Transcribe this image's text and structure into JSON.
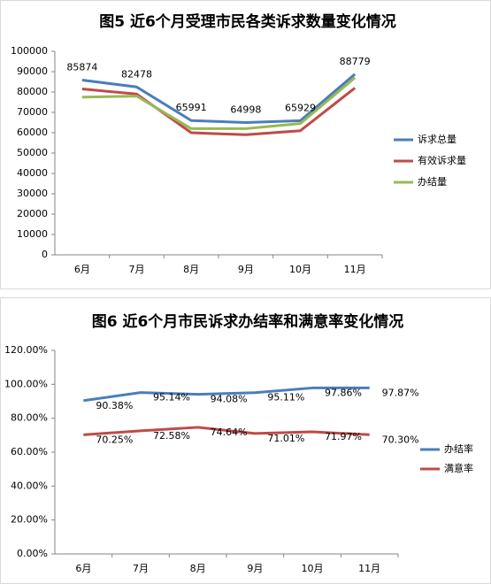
{
  "chart_data": [
    {
      "type": "line",
      "title": "图5  近6个月受理市民各类诉求数量变化情况",
      "categories": [
        "6月",
        "7月",
        "8月",
        "9月",
        "10月",
        "11月"
      ],
      "series": [
        {
          "name": "诉求总量",
          "color": "#4a7ebb",
          "values": [
            85874,
            82478,
            65991,
            64998,
            65929,
            88779
          ],
          "data_labels": true
        },
        {
          "name": "有效诉求量",
          "color": "#be4b48",
          "values": [
            81500,
            79000,
            60000,
            59000,
            61000,
            82000
          ],
          "data_labels": false
        },
        {
          "name": "办结量",
          "color": "#98b954",
          "values": [
            77500,
            78000,
            62000,
            62000,
            64500,
            87000
          ],
          "data_labels": false
        }
      ],
      "ylim": [
        0,
        100000
      ],
      "yticks": [
        0,
        10000,
        20000,
        30000,
        40000,
        50000,
        60000,
        70000,
        80000,
        90000,
        100000
      ],
      "legend": "right"
    },
    {
      "type": "line",
      "title": "图6  近6个月市民诉求办结率和满意率变化情况",
      "categories": [
        "6月",
        "7月",
        "8月",
        "9月",
        "10月",
        "11月"
      ],
      "series": [
        {
          "name": "办结率",
          "color": "#4a7ebb",
          "values": [
            90.38,
            95.14,
            94.08,
            95.11,
            97.86,
            97.87
          ],
          "value_labels": [
            "90.38%",
            "95.14%",
            "94.08%",
            "95.11%",
            "97.86%",
            "97.87%"
          ],
          "data_labels": true
        },
        {
          "name": "满意率",
          "color": "#be4b48",
          "values": [
            70.25,
            72.58,
            74.64,
            71.01,
            71.97,
            70.3
          ],
          "value_labels": [
            "70.25%",
            "72.58%",
            "74.64%",
            "71.01%",
            "71.97%",
            "70.30%"
          ],
          "data_labels": true
        }
      ],
      "ylim": [
        0,
        120
      ],
      "yticks": [
        {
          "value": 0,
          "label": "0.00%"
        },
        {
          "value": 20,
          "label": "20.00%"
        },
        {
          "value": 40,
          "label": "40.00%"
        },
        {
          "value": 60,
          "label": "60.00%"
        },
        {
          "value": 80,
          "label": "80.00%"
        },
        {
          "value": 100,
          "label": "100.00%"
        },
        {
          "value": 120,
          "label": "120.00%"
        }
      ],
      "legend": "right"
    }
  ]
}
